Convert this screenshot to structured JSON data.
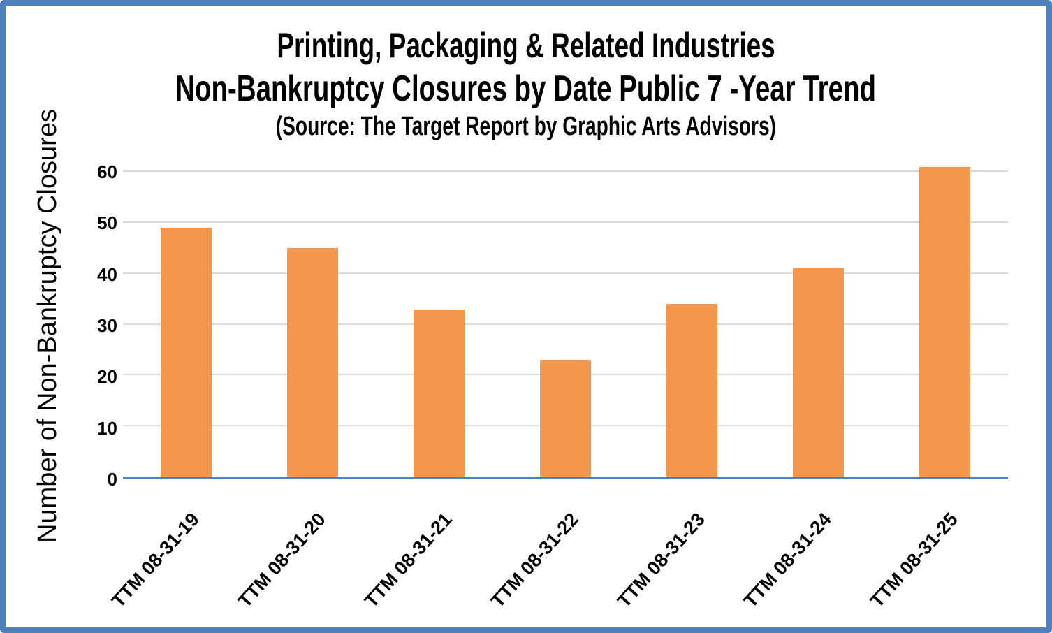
{
  "chart_data": {
    "type": "bar",
    "title": "Printing, Packaging & Related Industries",
    "subtitle": "Non-Bankruptcy Closures by Date Public 7 -Year Trend",
    "source": "(Source: The Target Report by Graphic Arts Advisors)",
    "categories": [
      "TTM 08-31-19",
      "TTM 08-31-20",
      "TTM 08-31-21",
      "TTM 08-31-22",
      "TTM 08-31-23",
      "TTM 08-31-24",
      "TTM 08-31-25"
    ],
    "values": [
      49,
      45,
      33,
      23,
      34,
      41,
      61
    ],
    "xlabel": "",
    "ylabel": "Number of Non-Bankruptcy Closures",
    "ylim": [
      0,
      60
    ],
    "ytick_step": 10,
    "yticks": [
      0,
      10,
      20,
      30,
      40,
      50,
      60
    ],
    "grid": "on",
    "legend": "none",
    "bar_color": "#f4964b",
    "axis_line_color": "#4e80bc",
    "gridline_color": "#d9d9d9",
    "frame_border_color": "#4e80bc",
    "text_color": "#000000"
  }
}
